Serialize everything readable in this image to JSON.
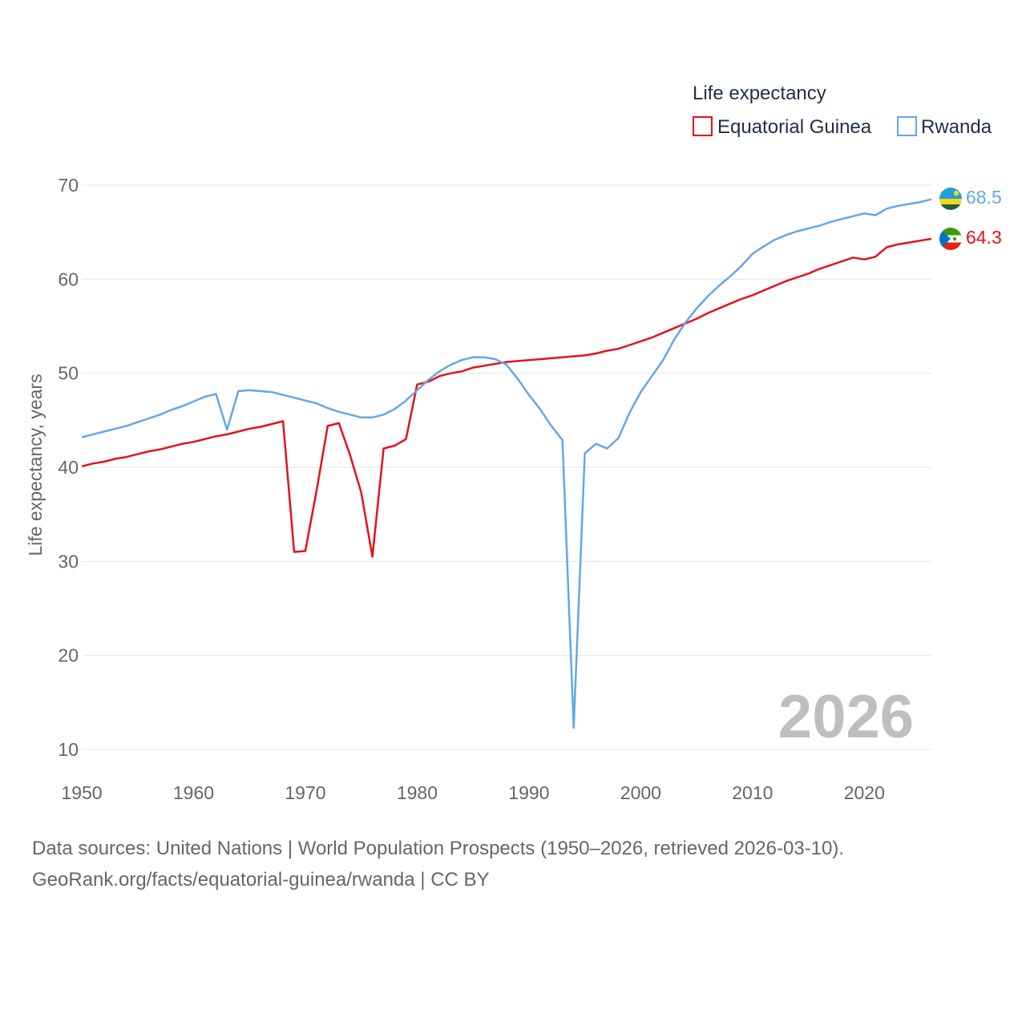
{
  "colors": {
    "equatorial_guinea": "#e8101a",
    "rwanda": "#62a8e6",
    "grid": "#e6e6e6",
    "axis_text": "#666666",
    "watermark": "#bfbfbf"
  },
  "legend": {
    "title": "Life expectancy",
    "items": [
      {
        "label": "Equatorial Guinea",
        "color": "#e8101a"
      },
      {
        "label": "Rwanda",
        "color": "#62a8e6"
      }
    ]
  },
  "watermark_year": "2026",
  "footer": {
    "line1": "Data sources: United Nations | World Population Prospects (1950–2026, retrieved 2026-03-10).",
    "line2": "GeoRank.org/facts/equatorial-guinea/rwanda | CC BY"
  },
  "end_labels": {
    "rwanda": "68.5",
    "equatorial_guinea": "64.3"
  },
  "chart_data": {
    "type": "line",
    "title": "Life expectancy",
    "xlabel": "",
    "ylabel": "Life expectancy, years",
    "xlim": [
      1950,
      2026
    ],
    "ylim": [
      8,
      72
    ],
    "x_ticks": [
      1950,
      1960,
      1970,
      1980,
      1990,
      2000,
      2010,
      2020
    ],
    "y_ticks": [
      10,
      20,
      30,
      40,
      50,
      60,
      70
    ],
    "grid": true,
    "legend_position": "top-right",
    "x": [
      1950,
      1951,
      1952,
      1953,
      1954,
      1955,
      1956,
      1957,
      1958,
      1959,
      1960,
      1961,
      1962,
      1963,
      1964,
      1965,
      1966,
      1967,
      1968,
      1969,
      1970,
      1971,
      1972,
      1973,
      1974,
      1975,
      1976,
      1977,
      1978,
      1979,
      1980,
      1981,
      1982,
      1983,
      1984,
      1985,
      1986,
      1987,
      1988,
      1989,
      1990,
      1991,
      1992,
      1993,
      1994,
      1995,
      1996,
      1997,
      1998,
      1999,
      2000,
      2001,
      2002,
      2003,
      2004,
      2005,
      2006,
      2007,
      2008,
      2009,
      2010,
      2011,
      2012,
      2013,
      2014,
      2015,
      2016,
      2017,
      2018,
      2019,
      2020,
      2021,
      2022,
      2023,
      2024,
      2025,
      2026
    ],
    "series": [
      {
        "name": "Equatorial Guinea",
        "color": "#e8101a",
        "values": [
          40.1,
          40.4,
          40.6,
          40.9,
          41.1,
          41.4,
          41.7,
          41.9,
          42.2,
          42.5,
          42.7,
          43.0,
          43.3,
          43.5,
          43.8,
          44.1,
          44.3,
          44.6,
          44.9,
          31.0,
          31.1,
          37.5,
          44.4,
          44.7,
          41.3,
          37.3,
          30.5,
          42.0,
          42.3,
          43.0,
          48.8,
          49.1,
          49.7,
          50.0,
          50.2,
          50.6,
          50.8,
          51.0,
          51.2,
          51.3,
          51.4,
          51.5,
          51.6,
          51.7,
          51.8,
          51.9,
          52.1,
          52.4,
          52.6,
          53.0,
          53.4,
          53.8,
          54.3,
          54.8,
          55.3,
          55.8,
          56.4,
          56.9,
          57.4,
          57.9,
          58.3,
          58.8,
          59.3,
          59.8,
          60.2,
          60.6,
          61.1,
          61.5,
          61.9,
          62.3,
          62.1,
          62.4,
          63.4,
          63.7,
          63.9,
          64.1,
          64.3
        ]
      },
      {
        "name": "Rwanda",
        "color": "#62a8e6",
        "values": [
          43.2,
          43.5,
          43.8,
          44.1,
          44.4,
          44.8,
          45.2,
          45.6,
          46.1,
          46.5,
          47.0,
          47.5,
          47.8,
          44.0,
          48.1,
          48.2,
          48.1,
          48.0,
          47.7,
          47.4,
          47.1,
          46.8,
          46.3,
          45.9,
          45.6,
          45.3,
          45.3,
          45.6,
          46.2,
          47.1,
          48.2,
          49.3,
          50.2,
          50.9,
          51.4,
          51.7,
          51.7,
          51.5,
          50.9,
          49.4,
          47.7,
          46.2,
          44.4,
          42.9,
          12.3,
          41.5,
          42.5,
          42.0,
          43.1,
          45.8,
          48.0,
          49.7,
          51.4,
          53.6,
          55.4,
          56.9,
          58.2,
          59.3,
          60.3,
          61.4,
          62.7,
          63.5,
          64.2,
          64.7,
          65.1,
          65.4,
          65.7,
          66.1,
          66.4,
          66.7,
          67.0,
          66.8,
          67.5,
          67.8,
          68.0,
          68.2,
          68.5
        ]
      }
    ]
  }
}
